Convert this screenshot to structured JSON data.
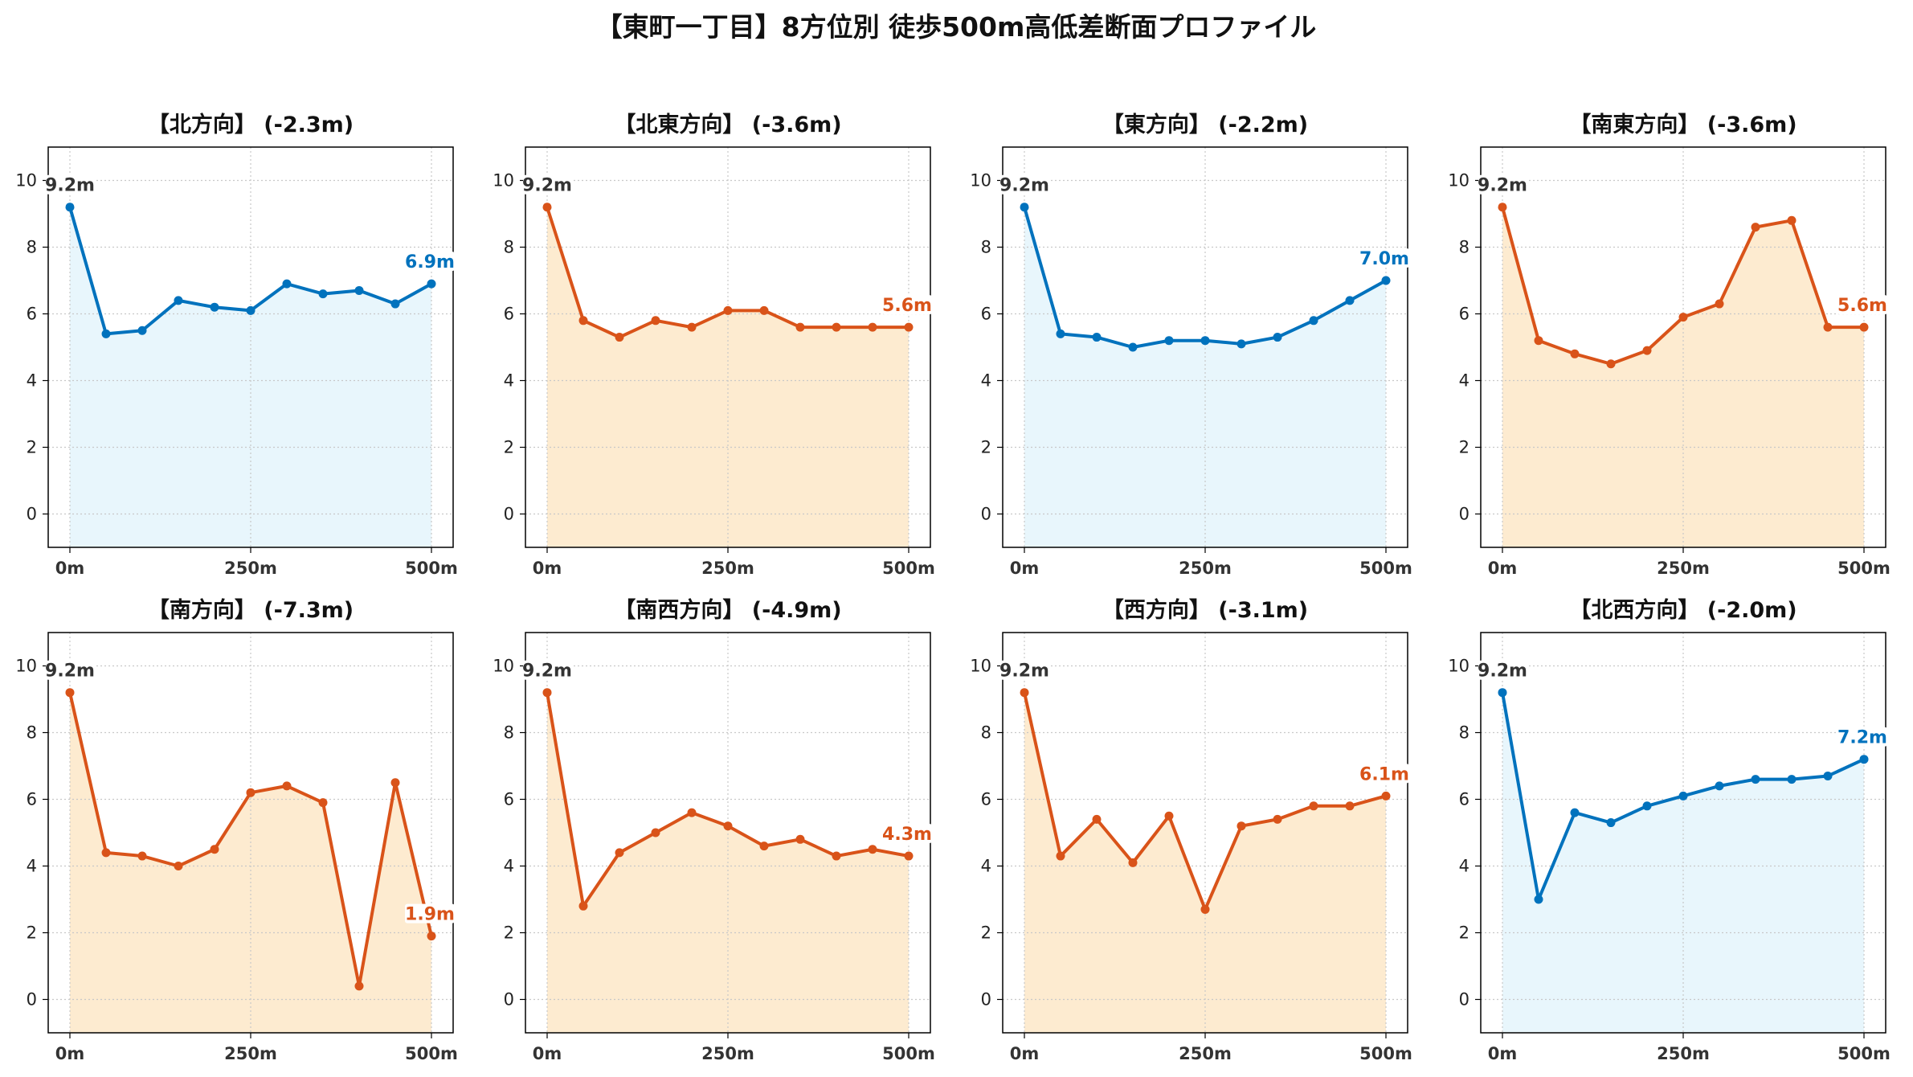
{
  "title": "【東町一丁目】8方位別 徒歩500m高低差断面プロファイル",
  "colors": {
    "up": "#0072BD",
    "up_fill": "#E8F6FC",
    "down": "#D95319",
    "down_fill": "#FDEBD0",
    "start_label": "#333333",
    "grid": "#C8C8C8"
  },
  "chart_data": [
    {
      "type": "line",
      "title": "【北方向】 (-2.3m)",
      "trend": "up",
      "x": [
        0,
        50,
        100,
        150,
        200,
        250,
        300,
        350,
        400,
        450,
        500
      ],
      "y": [
        9.2,
        5.4,
        5.5,
        6.4,
        6.2,
        6.1,
        6.9,
        6.6,
        6.7,
        6.3,
        6.9
      ],
      "start_label": "9.2m",
      "end_label": "6.9m",
      "xticks": [
        "0m",
        "250m",
        "500m"
      ],
      "yticks": [
        "0",
        "2",
        "4",
        "6",
        "8",
        "10"
      ],
      "xlim": [
        -30,
        530
      ],
      "ylim": [
        -1,
        11
      ],
      "grid": true
    },
    {
      "type": "line",
      "title": "【北東方向】 (-3.6m)",
      "trend": "down",
      "x": [
        0,
        50,
        100,
        150,
        200,
        250,
        300,
        350,
        400,
        450,
        500
      ],
      "y": [
        9.2,
        5.8,
        5.3,
        5.8,
        5.6,
        6.1,
        6.1,
        5.6,
        5.6,
        5.6,
        5.6
      ],
      "start_label": "9.2m",
      "end_label": "5.6m",
      "xticks": [
        "0m",
        "250m",
        "500m"
      ],
      "yticks": [
        "0",
        "2",
        "4",
        "6",
        "8",
        "10"
      ],
      "xlim": [
        -30,
        530
      ],
      "ylim": [
        -1,
        11
      ],
      "grid": true
    },
    {
      "type": "line",
      "title": "【東方向】 (-2.2m)",
      "trend": "up",
      "x": [
        0,
        50,
        100,
        150,
        200,
        250,
        300,
        350,
        400,
        450,
        500
      ],
      "y": [
        9.2,
        5.4,
        5.3,
        5.0,
        5.2,
        5.2,
        5.1,
        5.3,
        5.8,
        6.4,
        7.0
      ],
      "start_label": "9.2m",
      "end_label": "7.0m",
      "xticks": [
        "0m",
        "250m",
        "500m"
      ],
      "yticks": [
        "0",
        "2",
        "4",
        "6",
        "8",
        "10"
      ],
      "xlim": [
        -30,
        530
      ],
      "ylim": [
        -1,
        11
      ],
      "grid": true
    },
    {
      "type": "line",
      "title": "【南東方向】 (-3.6m)",
      "trend": "down",
      "x": [
        0,
        50,
        100,
        150,
        200,
        250,
        300,
        350,
        400,
        450,
        500
      ],
      "y": [
        9.2,
        5.2,
        4.8,
        4.5,
        4.9,
        5.9,
        6.3,
        8.6,
        8.8,
        5.6,
        5.6
      ],
      "start_label": "9.2m",
      "end_label": "5.6m",
      "xticks": [
        "0m",
        "250m",
        "500m"
      ],
      "yticks": [
        "0",
        "2",
        "4",
        "6",
        "8",
        "10"
      ],
      "xlim": [
        -30,
        530
      ],
      "ylim": [
        -1,
        11
      ],
      "grid": true
    },
    {
      "type": "line",
      "title": "【南方向】 (-7.3m)",
      "trend": "down",
      "x": [
        0,
        50,
        100,
        150,
        200,
        250,
        300,
        350,
        400,
        450,
        500
      ],
      "y": [
        9.2,
        4.4,
        4.3,
        4.0,
        4.5,
        6.2,
        6.4,
        5.9,
        0.4,
        6.5,
        1.9
      ],
      "start_label": "9.2m",
      "end_label": "1.9m",
      "xticks": [
        "0m",
        "250m",
        "500m"
      ],
      "yticks": [
        "0",
        "2",
        "4",
        "6",
        "8",
        "10"
      ],
      "xlim": [
        -30,
        530
      ],
      "ylim": [
        -1,
        11
      ],
      "grid": true
    },
    {
      "type": "line",
      "title": "【南西方向】 (-4.9m)",
      "trend": "down",
      "x": [
        0,
        50,
        100,
        150,
        200,
        250,
        300,
        350,
        400,
        450,
        500
      ],
      "y": [
        9.2,
        2.8,
        4.4,
        5.0,
        5.6,
        5.2,
        4.6,
        4.8,
        4.3,
        4.5,
        4.3
      ],
      "start_label": "9.2m",
      "end_label": "4.3m",
      "xticks": [
        "0m",
        "250m",
        "500m"
      ],
      "yticks": [
        "0",
        "2",
        "4",
        "6",
        "8",
        "10"
      ],
      "xlim": [
        -30,
        530
      ],
      "ylim": [
        -1,
        11
      ],
      "grid": true
    },
    {
      "type": "line",
      "title": "【西方向】 (-3.1m)",
      "trend": "down",
      "x": [
        0,
        50,
        100,
        150,
        200,
        250,
        300,
        350,
        400,
        450,
        500
      ],
      "y": [
        9.2,
        4.3,
        5.4,
        4.1,
        5.5,
        2.7,
        5.2,
        5.4,
        5.8,
        5.8,
        6.1
      ],
      "start_label": "9.2m",
      "end_label": "6.1m",
      "xticks": [
        "0m",
        "250m",
        "500m"
      ],
      "yticks": [
        "0",
        "2",
        "4",
        "6",
        "8",
        "10"
      ],
      "xlim": [
        -30,
        530
      ],
      "ylim": [
        -1,
        11
      ],
      "grid": true
    },
    {
      "type": "line",
      "title": "【北西方向】 (-2.0m)",
      "trend": "up",
      "x": [
        0,
        50,
        100,
        150,
        200,
        250,
        300,
        350,
        400,
        450,
        500
      ],
      "y": [
        9.2,
        3.0,
        5.6,
        5.3,
        5.8,
        6.1,
        6.4,
        6.6,
        6.6,
        6.7,
        7.2
      ],
      "start_label": "9.2m",
      "end_label": "7.2m",
      "xticks": [
        "0m",
        "250m",
        "500m"
      ],
      "yticks": [
        "0",
        "2",
        "4",
        "6",
        "8",
        "10"
      ],
      "xlim": [
        -30,
        530
      ],
      "ylim": [
        -1,
        11
      ],
      "grid": true
    }
  ]
}
